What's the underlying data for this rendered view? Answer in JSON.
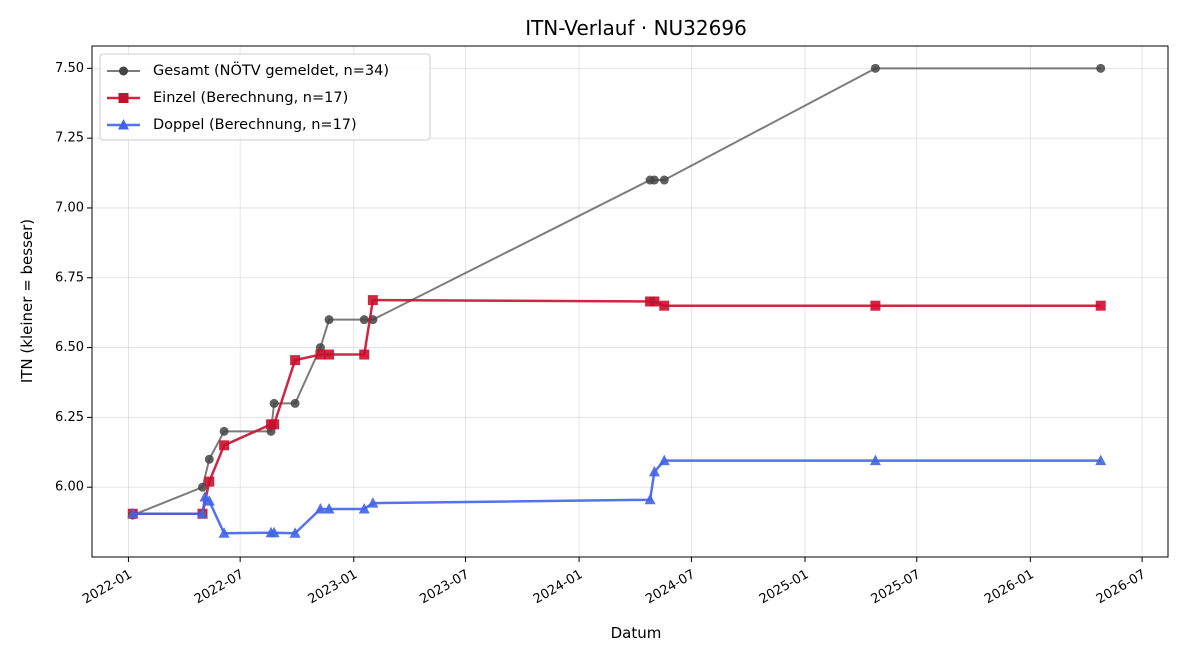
{
  "chart_data": {
    "type": "line",
    "title": "ITN-Verlauf · NU32696",
    "xlabel": "Datum",
    "ylabel": "ITN  (kleiner = besser)",
    "xlim": [
      "2021-11-03",
      "2026-08-12"
    ],
    "ylim": [
      5.75,
      7.58
    ],
    "x_ticks": [
      "2022-01",
      "2022-07",
      "2023-01",
      "2023-07",
      "2024-01",
      "2024-07",
      "2025-01",
      "2025-07",
      "2026-01",
      "2026-07"
    ],
    "y_ticks": [
      "6.00",
      "6.25",
      "6.50",
      "6.75",
      "7.00",
      "7.25",
      "7.50"
    ],
    "grid": true,
    "legend_position": "upper-left",
    "series": [
      {
        "name": "Gesamt (NÖTV gemeldet, n=34)",
        "color": "#444444",
        "marker": "circle",
        "points": [
          {
            "x": "2022-01-08",
            "y": 5.9
          },
          {
            "x": "2022-05-01",
            "y": 6.0
          },
          {
            "x": "2022-05-12",
            "y": 6.1
          },
          {
            "x": "2022-06-05",
            "y": 6.2
          },
          {
            "x": "2022-08-20",
            "y": 6.2
          },
          {
            "x": "2022-08-25",
            "y": 6.3
          },
          {
            "x": "2022-09-28",
            "y": 6.3
          },
          {
            "x": "2022-11-08",
            "y": 6.5
          },
          {
            "x": "2022-11-22",
            "y": 6.6
          },
          {
            "x": "2023-01-18",
            "y": 6.6
          },
          {
            "x": "2023-02-01",
            "y": 6.6
          },
          {
            "x": "2024-04-25",
            "y": 7.1
          },
          {
            "x": "2024-05-02",
            "y": 7.1
          },
          {
            "x": "2024-05-18",
            "y": 7.1
          },
          {
            "x": "2025-04-25",
            "y": 7.5
          },
          {
            "x": "2026-04-25",
            "y": 7.5
          }
        ]
      },
      {
        "name": "Einzel (Berechnung, n=17)",
        "color": "#c8102e",
        "marker": "square",
        "points": [
          {
            "x": "2022-01-08",
            "y": 5.905
          },
          {
            "x": "2022-05-01",
            "y": 5.905
          },
          {
            "x": "2022-05-12",
            "y": 6.02
          },
          {
            "x": "2022-06-05",
            "y": 6.15
          },
          {
            "x": "2022-08-20",
            "y": 6.225
          },
          {
            "x": "2022-08-25",
            "y": 6.225
          },
          {
            "x": "2022-09-28",
            "y": 6.455
          },
          {
            "x": "2022-11-08",
            "y": 6.475
          },
          {
            "x": "2022-11-22",
            "y": 6.475
          },
          {
            "x": "2023-01-18",
            "y": 6.475
          },
          {
            "x": "2023-02-01",
            "y": 6.67
          },
          {
            "x": "2024-04-25",
            "y": 6.665
          },
          {
            "x": "2024-05-02",
            "y": 6.665
          },
          {
            "x": "2024-05-18",
            "y": 6.65
          },
          {
            "x": "2025-04-25",
            "y": 6.65
          },
          {
            "x": "2026-04-25",
            "y": 6.65
          }
        ]
      },
      {
        "name": "Doppel (Berechnung, n=17)",
        "color": "#4263eb",
        "marker": "triangle",
        "points": [
          {
            "x": "2022-01-08",
            "y": 5.905
          },
          {
            "x": "2022-05-01",
            "y": 5.905
          },
          {
            "x": "2022-05-05",
            "y": 5.965
          },
          {
            "x": "2022-05-12",
            "y": 5.95
          },
          {
            "x": "2022-06-05",
            "y": 5.835
          },
          {
            "x": "2022-08-20",
            "y": 5.837
          },
          {
            "x": "2022-08-25",
            "y": 5.837
          },
          {
            "x": "2022-09-28",
            "y": 5.835
          },
          {
            "x": "2022-11-08",
            "y": 5.922
          },
          {
            "x": "2022-11-22",
            "y": 5.922
          },
          {
            "x": "2023-01-18",
            "y": 5.922
          },
          {
            "x": "2023-02-01",
            "y": 5.943
          },
          {
            "x": "2024-04-25",
            "y": 5.955
          },
          {
            "x": "2024-05-02",
            "y": 6.055
          },
          {
            "x": "2024-05-18",
            "y": 6.095
          },
          {
            "x": "2025-04-25",
            "y": 6.095
          },
          {
            "x": "2026-04-25",
            "y": 6.095
          }
        ]
      }
    ]
  }
}
